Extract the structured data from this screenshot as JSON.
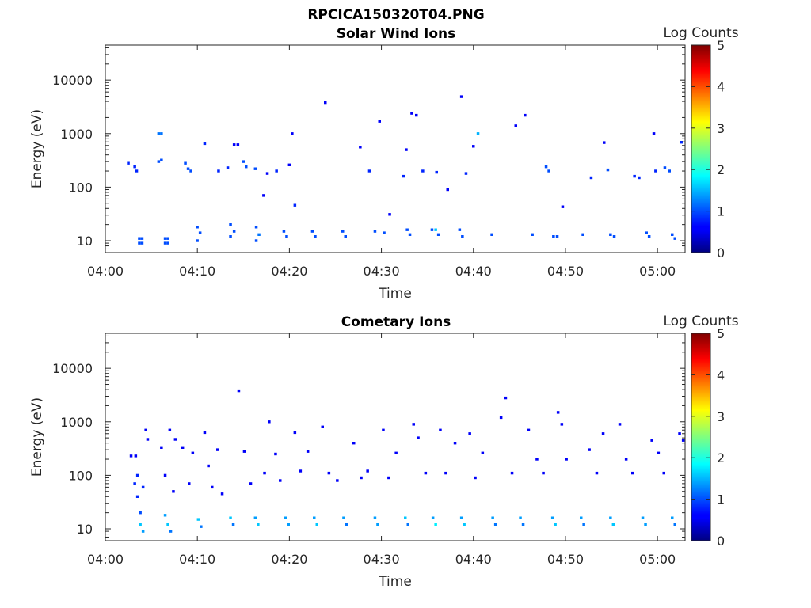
{
  "figure": {
    "title": "RPCICA150320T04.PNG"
  },
  "chart_data": [
    {
      "type": "heatmap",
      "title": "Solar Wind Ions",
      "xlabel": "Time",
      "ylabel": "Energy (eV)",
      "x_ticks": [
        "04:00",
        "04:10",
        "04:20",
        "04:30",
        "04:40",
        "04:50",
        "05:00"
      ],
      "x_range_min": [
        0,
        63
      ],
      "y_scale": "log",
      "y_ticks": [
        10,
        100,
        1000,
        10000
      ],
      "y_tick_labels": [
        "10",
        "100",
        "1000",
        "10000"
      ],
      "y_range_ev": [
        6,
        45000
      ],
      "colorbar": {
        "label": "Log Counts",
        "range": [
          0,
          5
        ],
        "ticks": [
          "0",
          "1",
          "2",
          "3",
          "4",
          "5"
        ],
        "colormap": "jet"
      },
      "cells": [
        [
          3.7,
          9,
          1.0
        ],
        [
          3.7,
          11,
          1.0
        ],
        [
          4.0,
          9,
          1.0
        ],
        [
          4.0,
          11,
          1.0
        ],
        [
          6.5,
          9,
          1.0
        ],
        [
          6.5,
          11,
          1.0
        ],
        [
          6.8,
          9,
          1.0
        ],
        [
          6.8,
          11,
          1.0
        ],
        [
          5.8,
          1000,
          1.2
        ],
        [
          6.1,
          1000,
          1.2
        ],
        [
          5.8,
          300,
          1.0
        ],
        [
          6.1,
          320,
          1.0
        ],
        [
          2.5,
          280,
          0.8
        ],
        [
          3.2,
          240,
          0.8
        ],
        [
          3.4,
          200,
          0.8
        ],
        [
          8.7,
          280,
          1.0
        ],
        [
          9.0,
          220,
          1.0
        ],
        [
          9.3,
          200,
          1.0
        ],
        [
          10.8,
          650,
          0.8
        ],
        [
          10.0,
          18,
          1.0
        ],
        [
          10.0,
          10,
          1.0
        ],
        [
          10.3,
          14,
          1.0
        ],
        [
          12.3,
          200,
          0.8
        ],
        [
          13.3,
          230,
          0.8
        ],
        [
          14.0,
          620,
          0.6
        ],
        [
          14.4,
          620,
          0.6
        ],
        [
          13.6,
          20,
          1.0
        ],
        [
          13.6,
          12,
          1.0
        ],
        [
          14.0,
          15,
          1.0
        ],
        [
          15.0,
          300,
          1.0
        ],
        [
          15.3,
          240,
          1.0
        ],
        [
          16.3,
          220,
          1.0
        ],
        [
          17.2,
          70,
          0.6
        ],
        [
          16.4,
          18,
          1.0
        ],
        [
          16.4,
          10,
          1.0
        ],
        [
          16.7,
          13,
          1.2
        ],
        [
          17.6,
          180,
          0.6
        ],
        [
          18.6,
          200,
          0.8
        ],
        [
          19.4,
          15,
          1.0
        ],
        [
          19.7,
          12,
          1.0
        ],
        [
          20.3,
          1000,
          0.6
        ],
        [
          20.0,
          260,
          0.6
        ],
        [
          20.6,
          46,
          0.8
        ],
        [
          22.5,
          15,
          1.0
        ],
        [
          22.8,
          12,
          1.0
        ],
        [
          23.9,
          3800,
          0.6
        ],
        [
          25.8,
          15,
          1.0
        ],
        [
          26.1,
          12,
          1.0
        ],
        [
          27.7,
          560,
          0.6
        ],
        [
          28.7,
          200,
          0.8
        ],
        [
          29.8,
          1700,
          0.6
        ],
        [
          29.3,
          15,
          1.0
        ],
        [
          30.3,
          14,
          1.0
        ],
        [
          30.9,
          31,
          0.6
        ],
        [
          32.4,
          160,
          0.8
        ],
        [
          32.7,
          500,
          0.6
        ],
        [
          32.8,
          16,
          1.0
        ],
        [
          33.1,
          13,
          1.0
        ],
        [
          33.3,
          2400,
          0.6
        ],
        [
          33.8,
          2200,
          0.6
        ],
        [
          34.5,
          200,
          0.8
        ],
        [
          35.5,
          16,
          1.0
        ],
        [
          35.9,
          16,
          1.6
        ],
        [
          36.2,
          13,
          1.0
        ],
        [
          36.0,
          190,
          0.8
        ],
        [
          37.2,
          90,
          0.6
        ],
        [
          38.7,
          4900,
          0.6
        ],
        [
          38.5,
          16,
          1.0
        ],
        [
          38.8,
          12,
          1.0
        ],
        [
          39.2,
          180,
          0.8
        ],
        [
          40.0,
          580,
          0.6
        ],
        [
          40.5,
          1000,
          1.5
        ],
        [
          42.0,
          13,
          1.0
        ],
        [
          44.6,
          1400,
          0.6
        ],
        [
          45.6,
          2200,
          0.6
        ],
        [
          46.4,
          13,
          1.0
        ],
        [
          47.9,
          240,
          1.0
        ],
        [
          48.2,
          200,
          1.0
        ],
        [
          48.7,
          12,
          1.0
        ],
        [
          49.1,
          12,
          1.0
        ],
        [
          49.7,
          43,
          0.6
        ],
        [
          51.9,
          13,
          1.0
        ],
        [
          52.8,
          150,
          0.8
        ],
        [
          54.2,
          680,
          0.6
        ],
        [
          54.6,
          210,
          1.0
        ],
        [
          54.9,
          13,
          1.0
        ],
        [
          55.3,
          12,
          1.0
        ],
        [
          57.5,
          160,
          0.8
        ],
        [
          58.0,
          150,
          0.8
        ],
        [
          58.8,
          14,
          1.0
        ],
        [
          59.1,
          12,
          1.0
        ],
        [
          59.6,
          1000,
          0.6
        ],
        [
          59.8,
          200,
          0.8
        ],
        [
          60.8,
          230,
          1.0
        ],
        [
          61.3,
          200,
          1.0
        ],
        [
          61.6,
          13,
          1.0
        ],
        [
          61.9,
          11,
          1.0
        ],
        [
          62.6,
          690,
          0.8
        ]
      ]
    },
    {
      "type": "heatmap",
      "title": "Cometary Ions",
      "xlabel": "Time",
      "ylabel": "Energy (eV)",
      "x_ticks": [
        "04:00",
        "04:10",
        "04:20",
        "04:30",
        "04:40",
        "04:50",
        "05:00"
      ],
      "x_range_min": [
        0,
        63
      ],
      "y_scale": "log",
      "y_ticks": [
        10,
        100,
        1000,
        10000
      ],
      "y_tick_labels": [
        "10",
        "100",
        "1000",
        "10000"
      ],
      "y_range_ev": [
        6,
        45000
      ],
      "colorbar": {
        "label": "Log Counts",
        "range": [
          0,
          5
        ],
        "ticks": [
          "0",
          "1",
          "2",
          "3",
          "4",
          "5"
        ],
        "colormap": "jet"
      },
      "cells": [
        [
          3.2,
          70,
          0.8
        ],
        [
          3.5,
          40,
          0.8
        ],
        [
          3.8,
          20,
          1.0
        ],
        [
          3.8,
          12,
          1.6
        ],
        [
          4.1,
          9,
          1.4
        ],
        [
          3.5,
          100,
          0.8
        ],
        [
          4.1,
          60,
          0.8
        ],
        [
          4.4,
          700,
          0.6
        ],
        [
          4.6,
          470,
          0.6
        ],
        [
          2.8,
          230,
          0.6
        ],
        [
          3.3,
          230,
          0.6
        ],
        [
          6.5,
          100,
          0.6
        ],
        [
          6.5,
          18,
          1.4
        ],
        [
          6.8,
          12,
          1.6
        ],
        [
          7.1,
          9,
          1.2
        ],
        [
          7.4,
          50,
          0.6
        ],
        [
          7.0,
          700,
          0.6
        ],
        [
          7.6,
          470,
          0.6
        ],
        [
          8.4,
          330,
          0.6
        ],
        [
          6.1,
          330,
          0.6
        ],
        [
          9.1,
          70,
          0.6
        ],
        [
          9.5,
          260,
          0.6
        ],
        [
          10.1,
          15,
          1.6
        ],
        [
          10.4,
          11,
          1.2
        ],
        [
          10.8,
          630,
          0.6
        ],
        [
          11.2,
          150,
          0.6
        ],
        [
          11.6,
          60,
          0.6
        ],
        [
          12.2,
          300,
          0.6
        ],
        [
          12.7,
          45,
          0.6
        ],
        [
          13.6,
          16,
          1.6
        ],
        [
          13.9,
          12,
          1.2
        ],
        [
          14.5,
          3800,
          0.6
        ],
        [
          15.1,
          280,
          0.6
        ],
        [
          15.8,
          70,
          0.6
        ],
        [
          16.3,
          16,
          1.4
        ],
        [
          16.6,
          12,
          1.6
        ],
        [
          17.3,
          110,
          0.6
        ],
        [
          17.8,
          1000,
          0.6
        ],
        [
          18.5,
          250,
          0.6
        ],
        [
          19.0,
          80,
          0.6
        ],
        [
          19.6,
          16,
          1.4
        ],
        [
          19.9,
          12,
          1.4
        ],
        [
          20.6,
          630,
          0.6
        ],
        [
          21.2,
          120,
          0.6
        ],
        [
          22.0,
          280,
          0.6
        ],
        [
          22.7,
          16,
          1.4
        ],
        [
          23.0,
          12,
          1.6
        ],
        [
          23.6,
          800,
          0.6
        ],
        [
          24.3,
          110,
          0.6
        ],
        [
          25.2,
          80,
          0.6
        ],
        [
          25.9,
          16,
          1.4
        ],
        [
          26.2,
          12,
          1.2
        ],
        [
          27.0,
          400,
          0.6
        ],
        [
          27.8,
          90,
          0.6
        ],
        [
          28.5,
          120,
          0.6
        ],
        [
          29.3,
          16,
          1.4
        ],
        [
          29.6,
          12,
          1.4
        ],
        [
          30.2,
          700,
          0.6
        ],
        [
          30.8,
          90,
          0.6
        ],
        [
          31.6,
          260,
          0.6
        ],
        [
          32.6,
          16,
          1.6
        ],
        [
          32.9,
          12,
          1.2
        ],
        [
          33.5,
          900,
          0.6
        ],
        [
          34.0,
          500,
          0.6
        ],
        [
          34.8,
          110,
          0.6
        ],
        [
          35.6,
          16,
          1.4
        ],
        [
          35.9,
          12,
          1.8
        ],
        [
          36.4,
          700,
          0.6
        ],
        [
          37.0,
          110,
          0.6
        ],
        [
          38.0,
          400,
          0.6
        ],
        [
          38.7,
          16,
          1.4
        ],
        [
          39.0,
          12,
          1.6
        ],
        [
          39.6,
          600,
          0.6
        ],
        [
          40.2,
          90,
          0.6
        ],
        [
          41.0,
          260,
          0.6
        ],
        [
          42.1,
          16,
          1.4
        ],
        [
          42.4,
          12,
          1.2
        ],
        [
          43.0,
          1200,
          0.6
        ],
        [
          43.5,
          2800,
          0.6
        ],
        [
          44.2,
          110,
          0.6
        ],
        [
          45.1,
          16,
          1.4
        ],
        [
          45.4,
          12,
          1.2
        ],
        [
          46.0,
          700,
          0.6
        ],
        [
          46.9,
          200,
          0.6
        ],
        [
          47.6,
          110,
          0.6
        ],
        [
          48.6,
          16,
          1.4
        ],
        [
          48.9,
          12,
          1.6
        ],
        [
          49.2,
          1500,
          0.6
        ],
        [
          49.6,
          900,
          0.6
        ],
        [
          50.1,
          200,
          0.6
        ],
        [
          51.7,
          16,
          1.4
        ],
        [
          52.0,
          12,
          1.2
        ],
        [
          52.6,
          300,
          0.6
        ],
        [
          53.4,
          110,
          0.6
        ],
        [
          54.1,
          600,
          0.6
        ],
        [
          54.9,
          16,
          1.4
        ],
        [
          55.2,
          12,
          1.6
        ],
        [
          55.9,
          900,
          0.6
        ],
        [
          56.6,
          200,
          0.6
        ],
        [
          57.3,
          110,
          0.6
        ],
        [
          58.4,
          16,
          1.4
        ],
        [
          58.7,
          12,
          1.4
        ],
        [
          59.4,
          450,
          0.6
        ],
        [
          60.1,
          260,
          0.6
        ],
        [
          60.7,
          110,
          0.6
        ],
        [
          61.6,
          16,
          1.4
        ],
        [
          61.9,
          12,
          1.2
        ],
        [
          62.4,
          600,
          0.6
        ],
        [
          62.8,
          450,
          0.6
        ]
      ]
    }
  ]
}
